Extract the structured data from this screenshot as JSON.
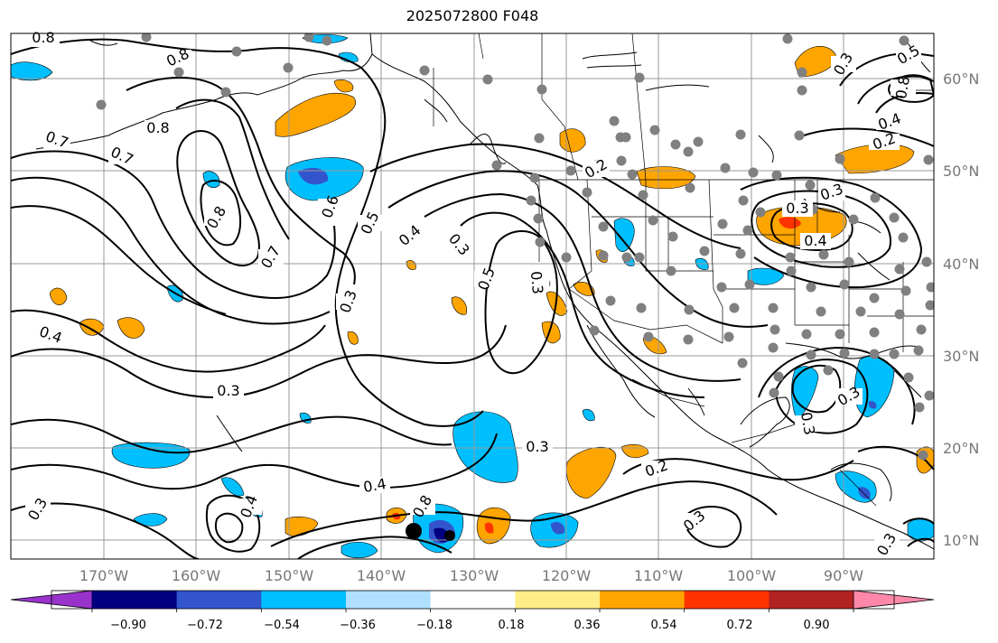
{
  "title": "2025072800 F048",
  "map": {
    "lon_labels": [
      "170°W",
      "160°W",
      "150°W",
      "140°W",
      "130°W",
      "120°W",
      "110°W",
      "100°W",
      "90°W"
    ],
    "lat_labels": [
      "60°N",
      "50°N",
      "40°N",
      "30°N",
      "20°N",
      "10°N"
    ],
    "contour_labels": [
      "0.8",
      "0.8",
      "0.8",
      "0.7",
      "0.7",
      "0.8",
      "0.7",
      "0.6",
      "0.5",
      "0.4",
      "0.3",
      "0.5",
      "0.3",
      "0.4",
      "0.3",
      "0.3",
      "0.4",
      "0.3",
      "0.2",
      "0.2",
      "0.3",
      "0.4",
      "0.3",
      "0.2",
      "0.3",
      "0.3",
      "0.4",
      "0.3",
      "0.3",
      "0.8",
      "0.8",
      "0.5",
      "0.4",
      "0.3",
      "0.3"
    ],
    "colors": {
      "coast": "#000000",
      "grid": "#999999",
      "contour": "#000000",
      "station": "#808080"
    }
  },
  "colorbar": {
    "ticks": [
      "−0.90",
      "−0.72",
      "−0.54",
      "−0.36",
      "−0.18",
      "0.18",
      "0.36",
      "0.54",
      "0.72",
      "0.90"
    ],
    "colors": [
      "#9933cc",
      "#000080",
      "#3355cc",
      "#00bfff",
      "#b0e0ff",
      "#ffffff",
      "#ffee88",
      "#ffa500",
      "#ff3300",
      "#b22222",
      "#ff88aa"
    ]
  }
}
